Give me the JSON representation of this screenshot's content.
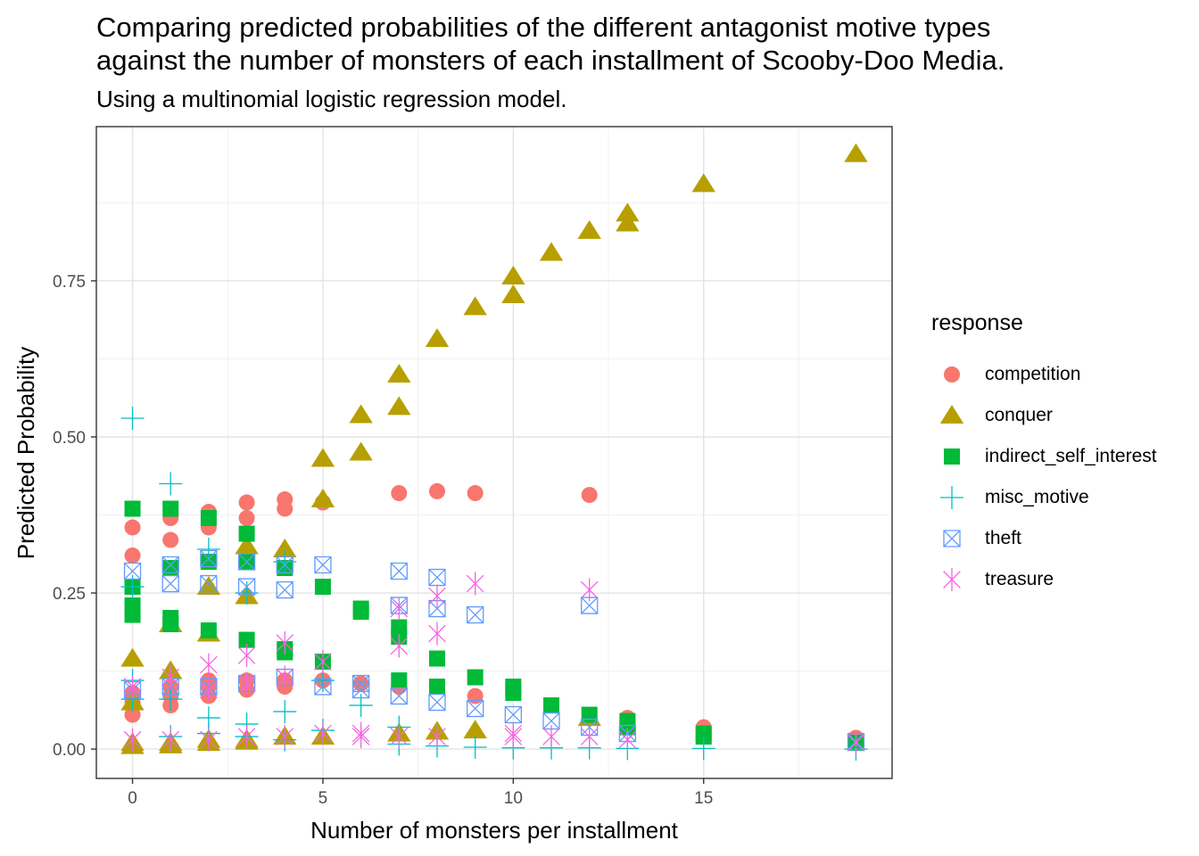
{
  "chart_data": {
    "type": "scatter",
    "title": "Comparing predicted probabilities of the different antagonist motive types\nagainst the number of monsters of each installment of Scooby-Doo Media.",
    "subtitle": "Using a multinomial logistic regression model.",
    "xlabel": "Number of monsters per installment",
    "ylabel": "Predicted Probability",
    "xlim": [
      -0.95,
      19.95
    ],
    "ylim": [
      -0.047,
      0.997
    ],
    "x_ticks": [
      0,
      5,
      10,
      15
    ],
    "x_tick_labels": [
      "0",
      "5",
      "10",
      "15"
    ],
    "y_ticks": [
      0.0,
      0.25,
      0.5,
      0.75
    ],
    "y_tick_labels": [
      "0.00",
      "0.25",
      "0.50",
      "0.75"
    ],
    "grid": true,
    "legend_title": "response",
    "legend_position": "right",
    "series": [
      {
        "name": "competition",
        "color": "#F8766D",
        "shape": "circle",
        "points": [
          [
            0,
            0.355
          ],
          [
            0,
            0.31
          ],
          [
            0,
            0.09
          ],
          [
            0,
            0.075
          ],
          [
            0,
            0.055
          ],
          [
            1,
            0.37
          ],
          [
            1,
            0.335
          ],
          [
            1,
            0.1
          ],
          [
            1,
            0.085
          ],
          [
            1,
            0.07
          ],
          [
            2,
            0.38
          ],
          [
            2,
            0.355
          ],
          [
            2,
            0.11
          ],
          [
            2,
            0.1
          ],
          [
            2,
            0.085
          ],
          [
            3,
            0.395
          ],
          [
            3,
            0.37
          ],
          [
            3,
            0.11
          ],
          [
            3,
            0.095
          ],
          [
            4,
            0.4
          ],
          [
            4,
            0.385
          ],
          [
            4,
            0.11
          ],
          [
            4,
            0.1
          ],
          [
            5,
            0.395
          ],
          [
            5,
            0.11
          ],
          [
            6,
            0.105
          ],
          [
            7,
            0.41
          ],
          [
            7,
            0.1
          ],
          [
            8,
            0.413
          ],
          [
            9,
            0.41
          ],
          [
            9,
            0.085
          ],
          [
            12,
            0.407
          ],
          [
            13,
            0.05
          ],
          [
            15,
            0.035
          ],
          [
            19,
            0.018
          ]
        ]
      },
      {
        "name": "conquer",
        "color": "#B79F00",
        "shape": "triangle",
        "points": [
          [
            0,
            0.145
          ],
          [
            0,
            0.075
          ],
          [
            0,
            0.01
          ],
          [
            0,
            0.005
          ],
          [
            1,
            0.125
          ],
          [
            1,
            0.2
          ],
          [
            1,
            0.01
          ],
          [
            1,
            0.006
          ],
          [
            2,
            0.26
          ],
          [
            2,
            0.185
          ],
          [
            2,
            0.015
          ],
          [
            2,
            0.01
          ],
          [
            3,
            0.325
          ],
          [
            3,
            0.245
          ],
          [
            3,
            0.015
          ],
          [
            3,
            0.012
          ],
          [
            4,
            0.32
          ],
          [
            4,
            0.02
          ],
          [
            5,
            0.465
          ],
          [
            5,
            0.4
          ],
          [
            5,
            0.02
          ],
          [
            6,
            0.535
          ],
          [
            6,
            0.475
          ],
          [
            7,
            0.6
          ],
          [
            7,
            0.548
          ],
          [
            7,
            0.025
          ],
          [
            8,
            0.657
          ],
          [
            8,
            0.028
          ],
          [
            9,
            0.708
          ],
          [
            9,
            0.03
          ],
          [
            10,
            0.757
          ],
          [
            10,
            0.727
          ],
          [
            11,
            0.795
          ],
          [
            12,
            0.83
          ],
          [
            12,
            0.05
          ],
          [
            13,
            0.858
          ],
          [
            13,
            0.842
          ],
          [
            15,
            0.905
          ],
          [
            19,
            0.953
          ]
        ]
      },
      {
        "name": "indirect_self_interest",
        "color": "#00BA38",
        "shape": "square",
        "points": [
          [
            0,
            0.385
          ],
          [
            0,
            0.26
          ],
          [
            0,
            0.23
          ],
          [
            0,
            0.215
          ],
          [
            1,
            0.385
          ],
          [
            1,
            0.29
          ],
          [
            1,
            0.21
          ],
          [
            1,
            0.2
          ],
          [
            2,
            0.37
          ],
          [
            2,
            0.3
          ],
          [
            2,
            0.19
          ],
          [
            3,
            0.345
          ],
          [
            3,
            0.3
          ],
          [
            3,
            0.175
          ],
          [
            4,
            0.29
          ],
          [
            4,
            0.16
          ],
          [
            4,
            0.155
          ],
          [
            5,
            0.26
          ],
          [
            5,
            0.14
          ],
          [
            6,
            0.225
          ],
          [
            6,
            0.22
          ],
          [
            7,
            0.195
          ],
          [
            7,
            0.18
          ],
          [
            7,
            0.11
          ],
          [
            8,
            0.145
          ],
          [
            8,
            0.1
          ],
          [
            9,
            0.115
          ],
          [
            10,
            0.1
          ],
          [
            10,
            0.09
          ],
          [
            11,
            0.07
          ],
          [
            12,
            0.055
          ],
          [
            13,
            0.045
          ],
          [
            13,
            0.035
          ],
          [
            15,
            0.025
          ],
          [
            15,
            0.02
          ],
          [
            19,
            0.01
          ]
        ]
      },
      {
        "name": "misc_motive",
        "color": "#00BFC4",
        "shape": "plus",
        "points": [
          [
            0,
            0.53
          ],
          [
            0,
            0.26
          ],
          [
            0,
            0.11
          ],
          [
            0,
            0.08
          ],
          [
            1,
            0.425
          ],
          [
            1,
            0.08
          ],
          [
            1,
            0.02
          ],
          [
            2,
            0.32
          ],
          [
            2,
            0.05
          ],
          [
            2,
            0.025
          ],
          [
            3,
            0.25
          ],
          [
            3,
            0.04
          ],
          [
            3,
            0.02
          ],
          [
            4,
            0.3
          ],
          [
            4,
            0.06
          ],
          [
            4,
            0.015
          ],
          [
            5,
            0.11
          ],
          [
            5,
            0.03
          ],
          [
            6,
            0.07
          ],
          [
            7,
            0.035
          ],
          [
            7,
            0.008
          ],
          [
            8,
            0.005
          ],
          [
            9,
            0.003
          ],
          [
            10,
            0.002
          ],
          [
            11,
            0.002
          ],
          [
            12,
            0.002
          ],
          [
            13,
            0.001
          ],
          [
            15,
            0.001
          ],
          [
            19,
            0.0
          ]
        ]
      },
      {
        "name": "theft",
        "color": "#619CFF",
        "shape": "boxcross",
        "points": [
          [
            0,
            0.285
          ],
          [
            0,
            0.095
          ],
          [
            1,
            0.295
          ],
          [
            1,
            0.265
          ],
          [
            1,
            0.1
          ],
          [
            2,
            0.305
          ],
          [
            2,
            0.265
          ],
          [
            2,
            0.1
          ],
          [
            3,
            0.3
          ],
          [
            3,
            0.26
          ],
          [
            3,
            0.105
          ],
          [
            4,
            0.295
          ],
          [
            4,
            0.255
          ],
          [
            4,
            0.115
          ],
          [
            5,
            0.295
          ],
          [
            5,
            0.1
          ],
          [
            6,
            0.105
          ],
          [
            6,
            0.095
          ],
          [
            7,
            0.285
          ],
          [
            7,
            0.23
          ],
          [
            7,
            0.085
          ],
          [
            8,
            0.275
          ],
          [
            8,
            0.225
          ],
          [
            8,
            0.075
          ],
          [
            9,
            0.215
          ],
          [
            9,
            0.065
          ],
          [
            10,
            0.055
          ],
          [
            11,
            0.045
          ],
          [
            12,
            0.23
          ],
          [
            12,
            0.035
          ],
          [
            13,
            0.025
          ],
          [
            19,
            0.012
          ]
        ]
      },
      {
        "name": "treasure",
        "color": "#F564E3",
        "shape": "asterisk",
        "points": [
          [
            0,
            0.1
          ],
          [
            0,
            0.015
          ],
          [
            1,
            0.115
          ],
          [
            1,
            0.015
          ],
          [
            2,
            0.135
          ],
          [
            2,
            0.095
          ],
          [
            2,
            0.015
          ],
          [
            3,
            0.15
          ],
          [
            3,
            0.105
          ],
          [
            3,
            0.02
          ],
          [
            4,
            0.17
          ],
          [
            4,
            0.115
          ],
          [
            4,
            0.02
          ],
          [
            5,
            0.14
          ],
          [
            5,
            0.025
          ],
          [
            6,
            0.025
          ],
          [
            6,
            0.02
          ],
          [
            7,
            0.225
          ],
          [
            7,
            0.165
          ],
          [
            7,
            0.02
          ],
          [
            8,
            0.245
          ],
          [
            8,
            0.185
          ],
          [
            8,
            0.02
          ],
          [
            9,
            0.265
          ],
          [
            10,
            0.025
          ],
          [
            10,
            0.02
          ],
          [
            11,
            0.02
          ],
          [
            12,
            0.255
          ],
          [
            12,
            0.02
          ],
          [
            13,
            0.015
          ],
          [
            19,
            0.01
          ]
        ]
      }
    ]
  }
}
